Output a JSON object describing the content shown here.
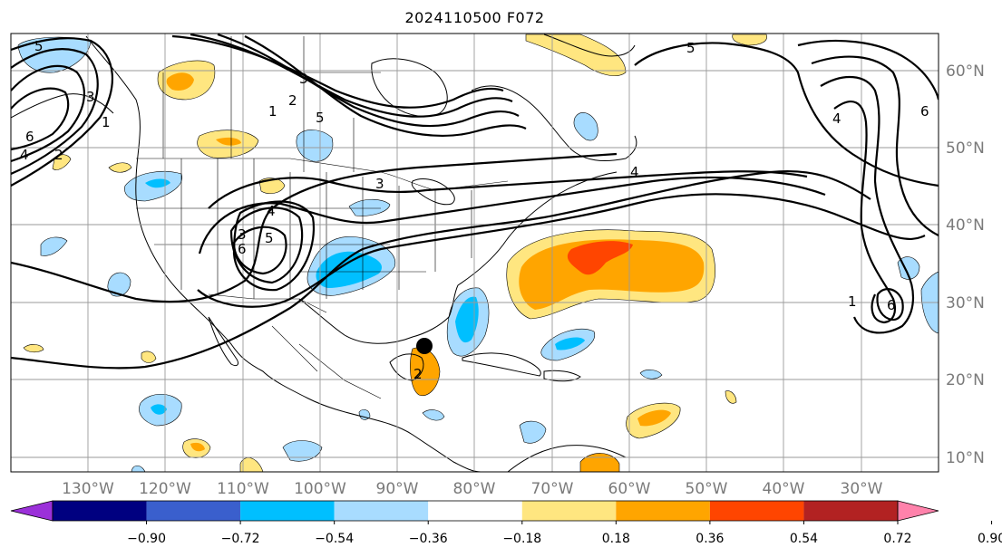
{
  "title": "2024110500 F072",
  "latitude_labels": [
    "60°N",
    "50°N",
    "40°N",
    "30°N",
    "20°N",
    "10°N"
  ],
  "longitude_labels": [
    "130°W",
    "120°W",
    "110°W",
    "100°W",
    "90°W",
    "80°W",
    "70°W",
    "60°W",
    "50°W",
    "40°W",
    "30°W"
  ],
  "contour_labels": [
    "5",
    "5",
    "3",
    "2",
    "1",
    "6",
    "4",
    "1",
    "2",
    "3",
    "5",
    "4",
    "3",
    "4",
    "5",
    "6",
    "3",
    "4",
    "6",
    "1",
    "6",
    "2"
  ],
  "colorbar": {
    "tick_labels": [
      "−0.90",
      "−0.72",
      "−0.54",
      "−0.36",
      "−0.18",
      "0.18",
      "0.36",
      "0.54",
      "0.72",
      "0.90"
    ],
    "colors": [
      "#9b30d9",
      "#000080",
      "#3a5fcd",
      "#00bfff",
      "#a8dcff",
      "#ffffff",
      "#ffe680",
      "#ffa500",
      "#ff4500",
      "#b22222",
      "#ff82ab"
    ]
  },
  "marker": {
    "type": "dot",
    "color": "#000000"
  }
}
